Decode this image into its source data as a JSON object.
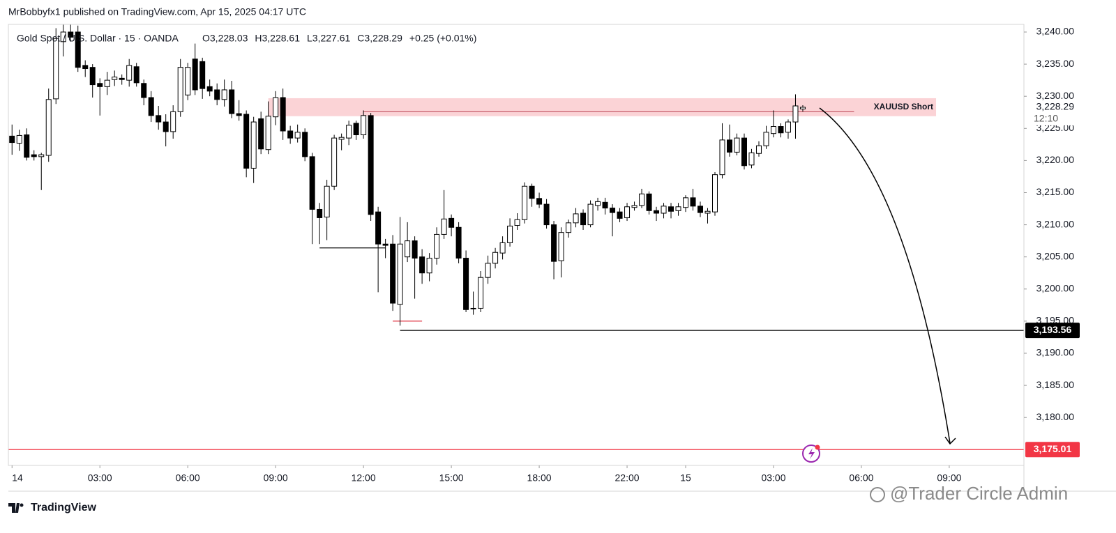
{
  "chart_data": {
    "type": "candlestick",
    "publisher": "MrBobbyfx1 published on TradingView.com, Apr 15, 2025 04:17 UTC",
    "symbol": "Gold Spot / U.S. Dollar · 15 · OANDA",
    "quote": [
      "O3,228.03",
      "H3,228.61",
      "L3,227.61",
      "C3,228.29",
      "+0.25 (+0.01%)"
    ],
    "brand": "TradingView",
    "watermark": "@Trader Circle Admin",
    "ylim": [
      3172.54,
      3241.19
    ],
    "xlim": [
      -0.5,
      138.2
    ],
    "yticks": [
      {
        "value": 3240,
        "label": "3,240.00"
      },
      {
        "value": 3235,
        "label": "3,235.00"
      },
      {
        "value": 3230,
        "label": "3,230.00"
      },
      {
        "value": 3225,
        "label": "3,225.00"
      },
      {
        "value": 3220,
        "label": "3,220.00"
      },
      {
        "value": 3215,
        "label": "3,215.00"
      },
      {
        "value": 3210,
        "label": "3,210.00"
      },
      {
        "value": 3205,
        "label": "3,205.00"
      },
      {
        "value": 3200,
        "label": "3,200.00"
      },
      {
        "value": 3195,
        "label": "3,195.00"
      },
      {
        "value": 3190,
        "label": "3,190.00"
      },
      {
        "value": 3185,
        "label": "3,185.00"
      },
      {
        "value": 3180,
        "label": "3,180.00"
      }
    ],
    "xticks": [
      {
        "value": 0,
        "label": "14"
      },
      {
        "value": 12,
        "label": "03:00"
      },
      {
        "value": 24,
        "label": "06:00"
      },
      {
        "value": 36,
        "label": "09:00"
      },
      {
        "value": 48,
        "label": "12:00"
      },
      {
        "value": 60,
        "label": "15:00"
      },
      {
        "value": 72,
        "label": "18:00"
      },
      {
        "value": 84,
        "label": "22:00"
      },
      {
        "value": 92,
        "label": "15"
      },
      {
        "value": 104,
        "label": "03:00"
      },
      {
        "value": 116,
        "label": "06:00"
      },
      {
        "value": 128,
        "label": "09:00"
      }
    ],
    "up_color": "#ffffff",
    "down_color": "#000000",
    "ohlc": [
      [
        3223.8,
        3225.6,
        3220.9,
        3222.8
      ],
      [
        3222.7,
        3224.8,
        3221.5,
        3223.9
      ],
      [
        3224,
        3225,
        3220,
        3220.5
      ],
      [
        3220.9,
        3221.6,
        3220,
        3220.6
      ],
      [
        3220.6,
        3221.2,
        3215.4,
        3220.9
      ],
      [
        3220.8,
        3231.2,
        3219.8,
        3229.5
      ],
      [
        3229.6,
        3240.6,
        3228.8,
        3239
      ],
      [
        3238.5,
        3241.2,
        3236.2,
        3240
      ],
      [
        3240,
        3241.2,
        3238.5,
        3239.2
      ],
      [
        3240,
        3241,
        3233.8,
        3234.5
      ],
      [
        3234.8,
        3235.6,
        3233,
        3234.3
      ],
      [
        3234.5,
        3235,
        3229.8,
        3231.8
      ],
      [
        3232,
        3232.8,
        3227,
        3231.5
      ],
      [
        3231.5,
        3233.8,
        3230.2,
        3232.5
      ],
      [
        3232.6,
        3234,
        3231.6,
        3233
      ],
      [
        3232.8,
        3233.4,
        3231.8,
        3232.6
      ],
      [
        3232.5,
        3235.8,
        3231.5,
        3234.8
      ],
      [
        3234.6,
        3235.2,
        3231.5,
        3232.1
      ],
      [
        3232,
        3232.6,
        3228.6,
        3229.8
      ],
      [
        3229.8,
        3230.8,
        3226,
        3227
      ],
      [
        3227,
        3228.5,
        3224.8,
        3226
      ],
      [
        3226,
        3227.2,
        3222.2,
        3224.5
      ],
      [
        3224.5,
        3228.6,
        3223.4,
        3227.6
      ],
      [
        3227.6,
        3235.8,
        3226.8,
        3234.5
      ],
      [
        3230.2,
        3235.2,
        3229.4,
        3234.5
      ],
      [
        3235.8,
        3238.2,
        3230.2,
        3231
      ],
      [
        3235.4,
        3236,
        3229.6,
        3231.2
      ],
      [
        3231.5,
        3232.6,
        3230,
        3230.8
      ],
      [
        3231,
        3232,
        3228.6,
        3229.5
      ],
      [
        3229.5,
        3232.6,
        3228.4,
        3231
      ],
      [
        3231,
        3232.4,
        3226.6,
        3227.3
      ],
      [
        3227.3,
        3229.4,
        3226.2,
        3227
      ],
      [
        3227.2,
        3227.8,
        3217.4,
        3218.8
      ],
      [
        3218.8,
        3226.8,
        3216.5,
        3226
      ],
      [
        3226.5,
        3227.6,
        3221,
        3221.8
      ],
      [
        3221.7,
        3229.2,
        3221,
        3226.9
      ],
      [
        3226.8,
        3230.8,
        3225.5,
        3229.8
      ],
      [
        3229.8,
        3231.2,
        3223.2,
        3224.6
      ],
      [
        3224.6,
        3225.4,
        3222.6,
        3223.5
      ],
      [
        3223.5,
        3225.6,
        3222.8,
        3224.4
      ],
      [
        3224.4,
        3225,
        3219.9,
        3220.6
      ],
      [
        3220.6,
        3221.2,
        3207,
        3212.4
      ],
      [
        3212.4,
        3213.4,
        3207,
        3211.1
      ],
      [
        3211.2,
        3217,
        3207.6,
        3216
      ],
      [
        3216,
        3224,
        3215.4,
        3223.5
      ],
      [
        3223.3,
        3224.2,
        3221.6,
        3223.6
      ],
      [
        3223.5,
        3226.2,
        3222.4,
        3225.5
      ],
      [
        3225.8,
        3226.2,
        3223.2,
        3224
      ],
      [
        3224,
        3227.8,
        3223.4,
        3227
      ],
      [
        3227,
        3227.4,
        3210.6,
        3211.6
      ],
      [
        3212,
        3212.8,
        3199.5,
        3207
      ],
      [
        3207,
        3207.8,
        3204.8,
        3206.8
      ],
      [
        3207,
        3208.4,
        3196.6,
        3197.8
      ],
      [
        3197.6,
        3211.2,
        3194.3,
        3207
      ],
      [
        3205,
        3210.4,
        3204.2,
        3207.5
      ],
      [
        3207.5,
        3208.2,
        3198.5,
        3204.8
      ],
      [
        3205,
        3206.2,
        3200.8,
        3202.5
      ],
      [
        3202.5,
        3205.6,
        3201.2,
        3204.8
      ],
      [
        3204.8,
        3209.6,
        3203.8,
        3208.5
      ],
      [
        3208.5,
        3215.4,
        3207.8,
        3210.9
      ],
      [
        3211,
        3211.6,
        3208.2,
        3209.6
      ],
      [
        3209.6,
        3210.4,
        3204,
        3204.8
      ],
      [
        3204.8,
        3206,
        3196.4,
        3196.8
      ],
      [
        3196.9,
        3199.6,
        3196,
        3197
      ],
      [
        3197,
        3202.8,
        3196.4,
        3201.8
      ],
      [
        3201.8,
        3205.2,
        3200.8,
        3204
      ],
      [
        3204,
        3206.4,
        3203.2,
        3205.7
      ],
      [
        3205.6,
        3208.2,
        3204.6,
        3207.2
      ],
      [
        3207.2,
        3211,
        3206.6,
        3209.8
      ],
      [
        3209.9,
        3211.8,
        3209.2,
        3210.8
      ],
      [
        3210.8,
        3216.6,
        3210.2,
        3216
      ],
      [
        3216,
        3216.4,
        3212.8,
        3214.1
      ],
      [
        3214.1,
        3215,
        3212.6,
        3213.2
      ],
      [
        3213.2,
        3214,
        3209.4,
        3210
      ],
      [
        3210,
        3210.6,
        3201.5,
        3204.3
      ],
      [
        3204.4,
        3209.6,
        3201.8,
        3208.8
      ],
      [
        3208.8,
        3210.8,
        3208,
        3210.3
      ],
      [
        3210.3,
        3212.6,
        3209.6,
        3211.7
      ],
      [
        3211.8,
        3212.4,
        3209.2,
        3210
      ],
      [
        3210,
        3213.8,
        3209.6,
        3213.2
      ],
      [
        3213,
        3214.2,
        3212.2,
        3213.6
      ],
      [
        3213.5,
        3214.2,
        3211.6,
        3212.6
      ],
      [
        3212.6,
        3213.2,
        3208.2,
        3211.9
      ],
      [
        3212,
        3212.6,
        3210.4,
        3211
      ],
      [
        3211.1,
        3213.4,
        3210.6,
        3212.8
      ],
      [
        3212.7,
        3213.6,
        3212.2,
        3213
      ],
      [
        3213,
        3215.6,
        3212.6,
        3214.8
      ],
      [
        3214.8,
        3215.2,
        3211.6,
        3212.2
      ],
      [
        3212.2,
        3212.8,
        3210.6,
        3211.8
      ],
      [
        3211.8,
        3213.4,
        3211,
        3212.9
      ],
      [
        3212.8,
        3213.4,
        3211,
        3212.1
      ],
      [
        3212.2,
        3213.4,
        3211.4,
        3212.8
      ],
      [
        3212.7,
        3214.6,
        3212,
        3214.2
      ],
      [
        3214.2,
        3215.6,
        3212.2,
        3212.9
      ],
      [
        3212.9,
        3213.6,
        3211.2,
        3211.9
      ],
      [
        3211.8,
        3212.6,
        3210.2,
        3212.1
      ],
      [
        3212,
        3218.2,
        3211.4,
        3217.8
      ],
      [
        3217.8,
        3225.8,
        3217.2,
        3223.2
      ],
      [
        3223.2,
        3225.6,
        3220.6,
        3221.3
      ],
      [
        3221.3,
        3224.2,
        3220.8,
        3223.5
      ],
      [
        3223.5,
        3224.2,
        3218.6,
        3219.2
      ],
      [
        3219.3,
        3221.8,
        3218.8,
        3221.2
      ],
      [
        3221.1,
        3223,
        3220.6,
        3222.3
      ],
      [
        3222.3,
        3225.4,
        3221.8,
        3224.4
      ],
      [
        3224.2,
        3227.8,
        3223.6,
        3225.3
      ],
      [
        3225.3,
        3225.8,
        3223.6,
        3224.3
      ],
      [
        3224.4,
        3226.4,
        3223.4,
        3226
      ],
      [
        3226,
        3230.3,
        3223.4,
        3228.5
      ],
      [
        3228.03,
        3228.61,
        3227.61,
        3228.29
      ]
    ],
    "zone": {
      "top": 3229.7,
      "bottom": 3226.9,
      "x": [
        35,
        126.2
      ],
      "color": "#fbd3d6",
      "label": "XAUUSD Short"
    },
    "lines": [
      {
        "value": 3227.6,
        "x": [
          48,
          115
        ],
        "color": "#c0525e"
      },
      {
        "value": 3206.4,
        "x": [
          42,
          51
        ],
        "color": "#000000"
      },
      {
        "value": 3195,
        "x": [
          52,
          56
        ],
        "color": "#e0424f"
      }
    ],
    "levels": [
      {
        "value": 3193.56,
        "label": "3,193.56",
        "x": 53,
        "color": "#000000"
      },
      {
        "value": 3175.01,
        "label": "3,175.01",
        "x": -0.5,
        "color": "#f23645"
      }
    ],
    "last_price": {
      "value": 3228.29,
      "label": "3,228.29",
      "countdown": "12:10"
    }
  }
}
